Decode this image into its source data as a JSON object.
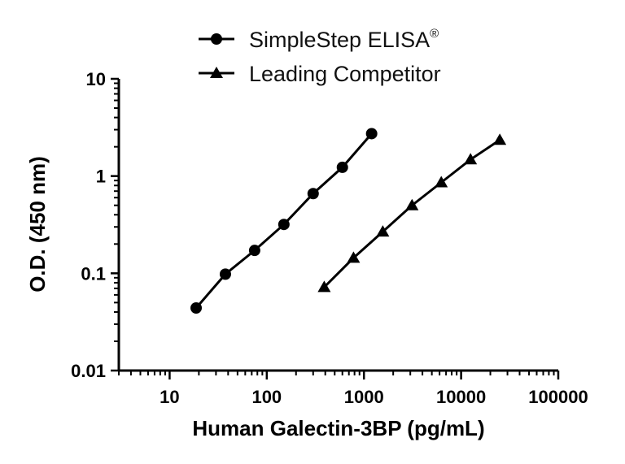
{
  "chart_data": {
    "type": "line",
    "xlabel": "Human Galectin-3BP (pg/mL)",
    "ylabel": "O.D. (450 nm)",
    "x_scale": "log",
    "y_scale": "log",
    "xlim": [
      3,
      100000
    ],
    "ylim": [
      0.01,
      10
    ],
    "x_ticks": [
      10,
      100,
      1000,
      10000,
      100000
    ],
    "x_tick_labels": [
      "10",
      "100",
      "1000",
      "10000",
      "100000"
    ],
    "y_ticks": [
      0.01,
      0.1,
      1,
      10
    ],
    "y_tick_labels": [
      "0.01",
      "0.1",
      "1",
      "10"
    ],
    "grid": false,
    "legend_position": "top-center",
    "series": [
      {
        "name": "SimpleStep ELISA",
        "name_superscript": "®",
        "marker": "circle",
        "color": "#000000",
        "x": [
          18.75,
          37.5,
          75,
          150,
          300,
          600,
          1200
        ],
        "y": [
          0.044,
          0.098,
          0.172,
          0.318,
          0.66,
          1.23,
          2.73
        ]
      },
      {
        "name": "Leading Competitor",
        "marker": "triangle",
        "color": "#000000",
        "x": [
          390,
          781,
          1563,
          3125,
          6250,
          12500,
          25000
        ],
        "y": [
          0.072,
          0.144,
          0.268,
          0.5,
          0.86,
          1.48,
          2.35
        ]
      }
    ]
  }
}
